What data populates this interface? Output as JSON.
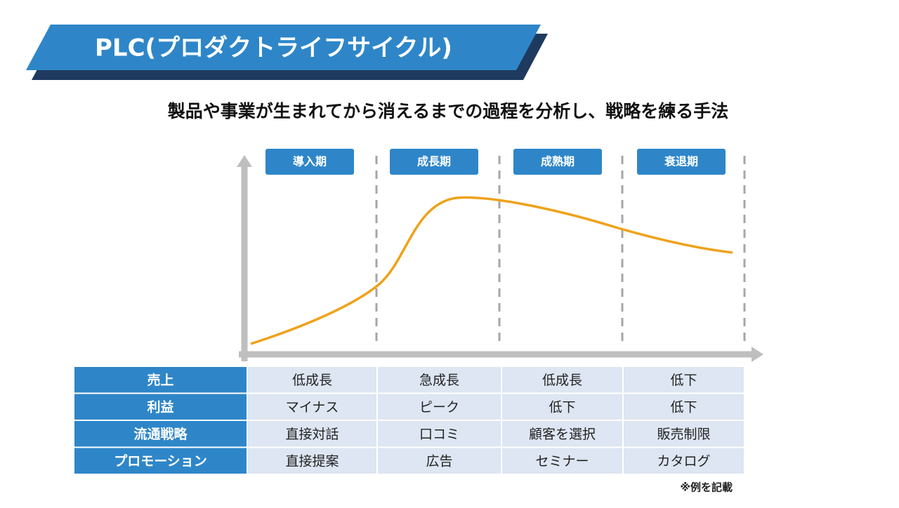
{
  "header": {
    "title": "PLC(プロダクトライフサイクル)",
    "subtitle": "製品や事業が生まれてから消えるまでの過程を分析し、戦略を練る手法"
  },
  "stages": [
    "導入期",
    "成長期",
    "成熟期",
    "衰退期"
  ],
  "table": {
    "rows": [
      [
        "売上",
        "低成長",
        "急成長",
        "低成長",
        "低下"
      ],
      [
        "利益",
        "マイナス",
        "ピーク",
        "低下",
        "低下"
      ],
      [
        "流通戦略",
        "直接対話",
        "口コミ",
        "顧客を選択",
        "販売制限"
      ],
      [
        "プロモーション",
        "直接提案",
        "広告",
        "セミナー",
        "カタログ"
      ]
    ]
  },
  "note": "※例を記載"
}
